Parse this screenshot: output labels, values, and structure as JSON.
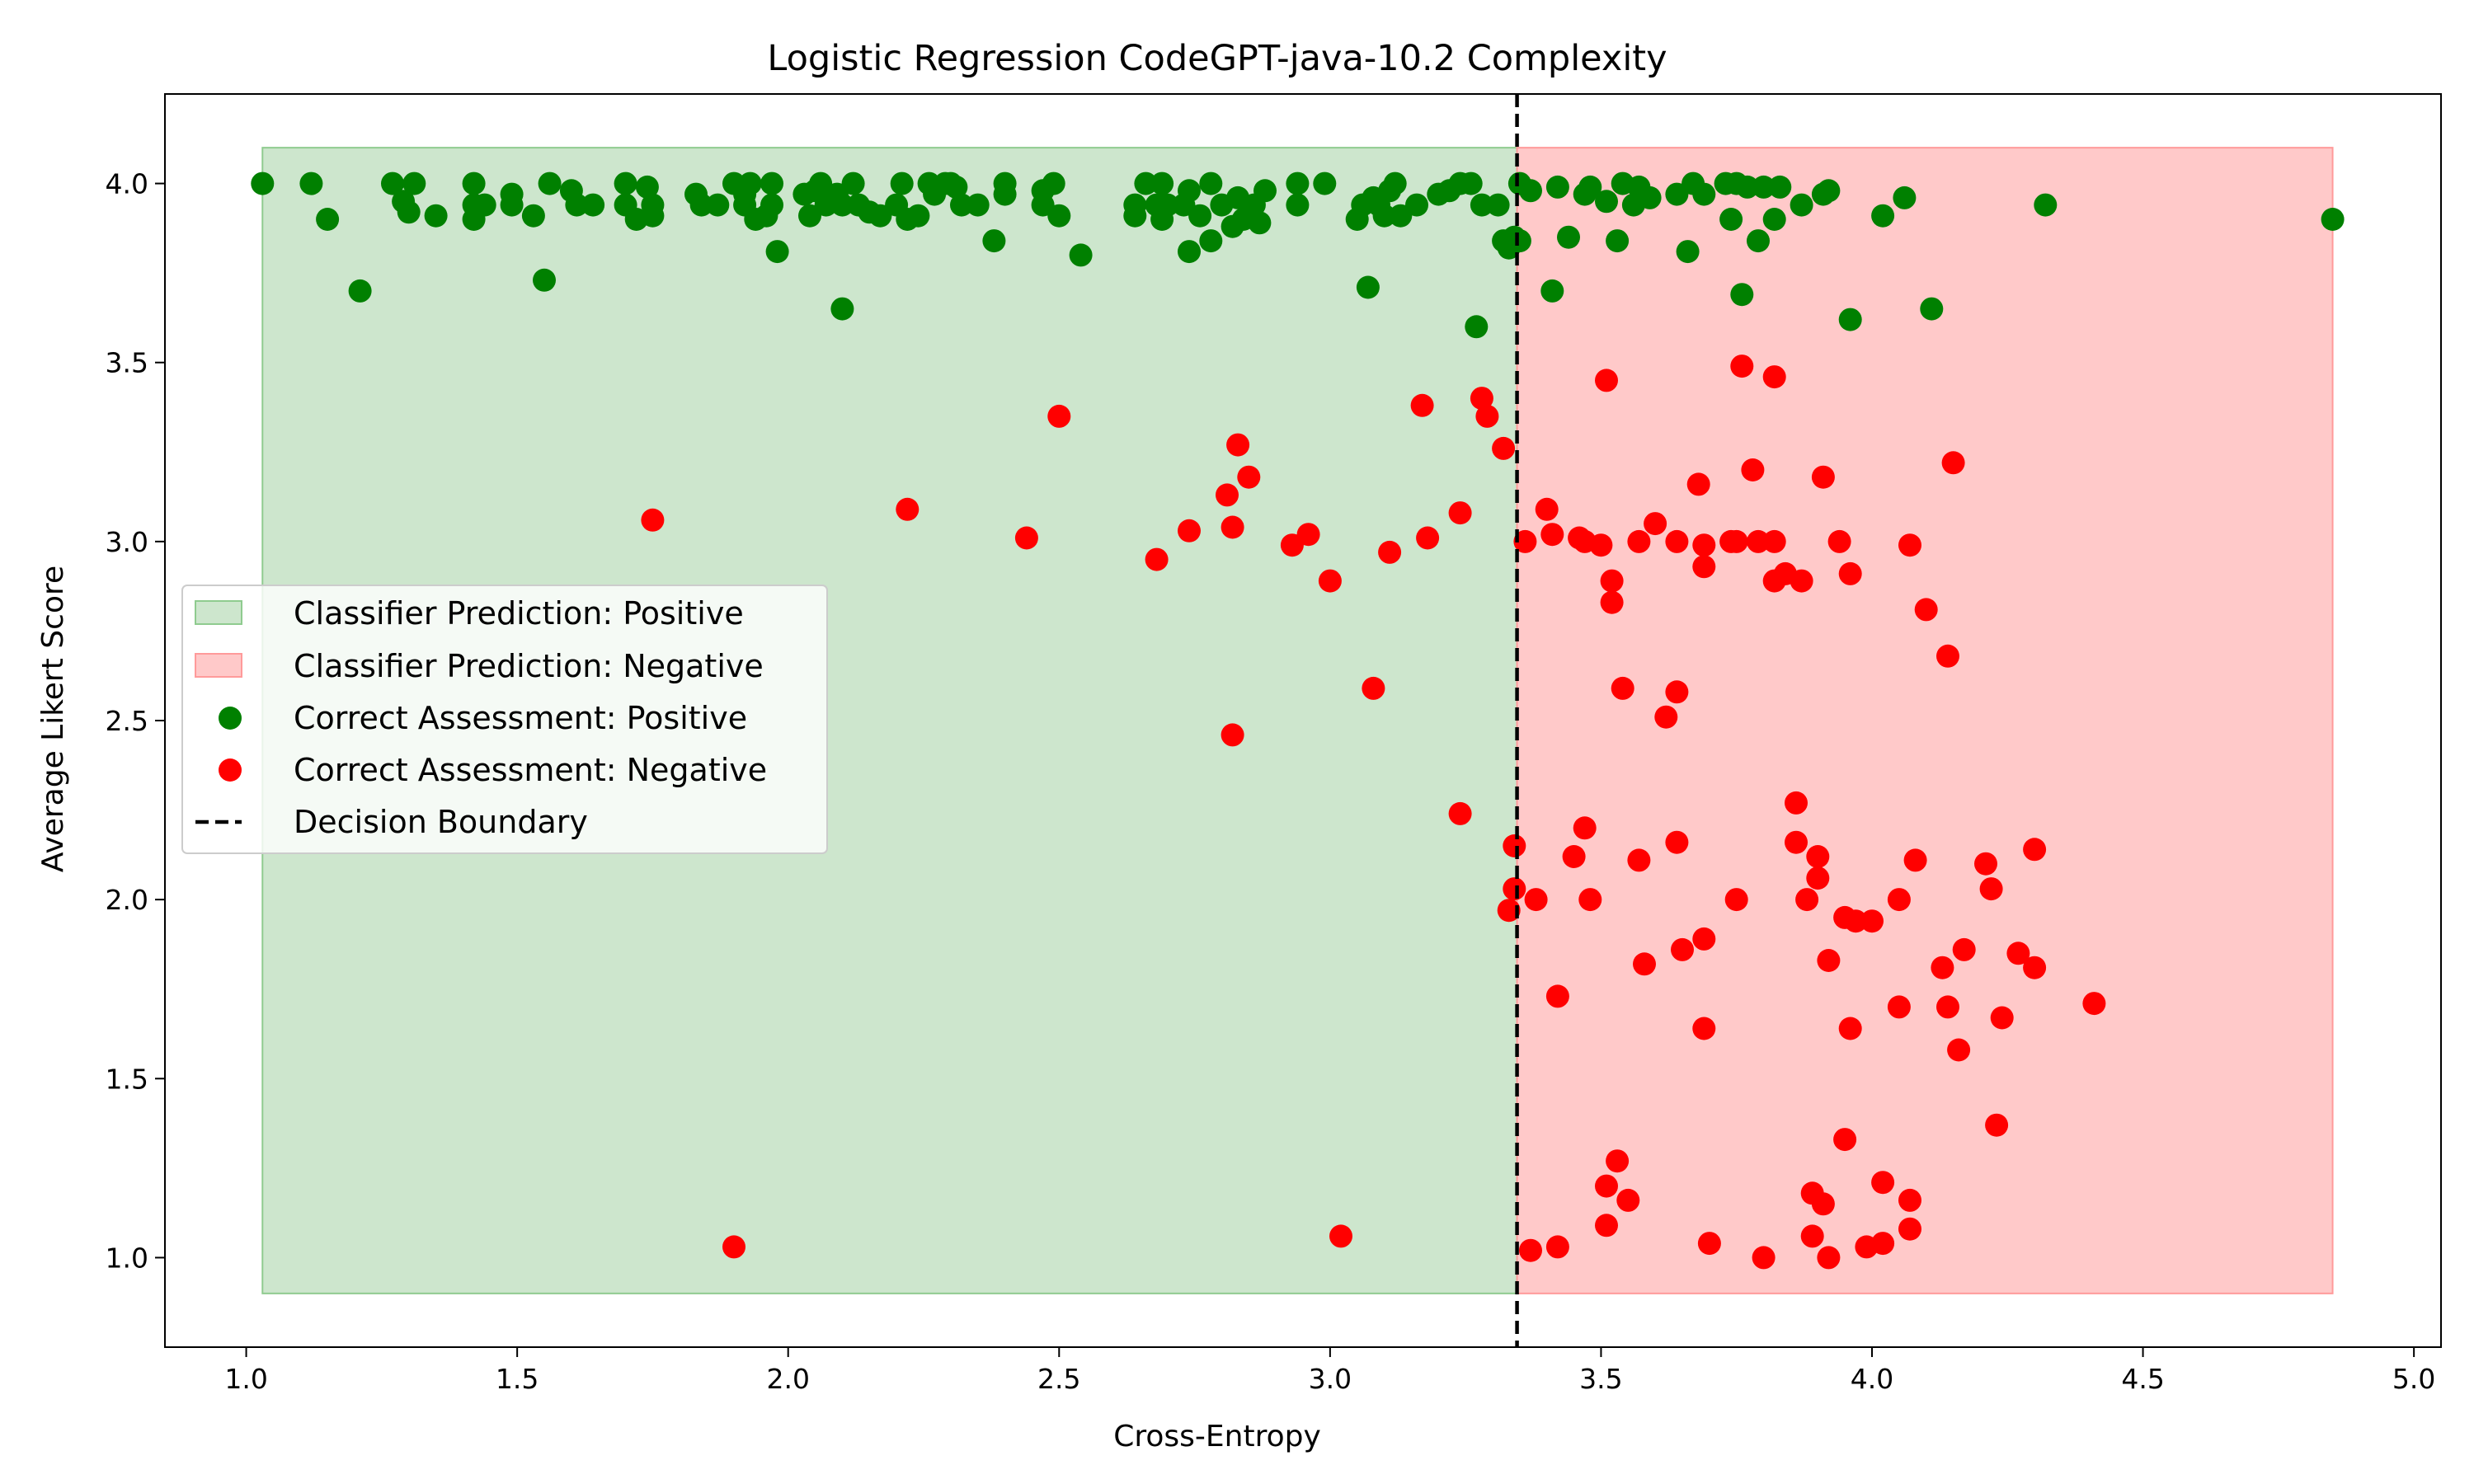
{
  "chart_data": {
    "type": "scatter",
    "title": "Logistic Regression CodeGPT-java-10.2 Complexity",
    "xlabel": "Cross-Entropy",
    "ylabel": "Average Likert Score",
    "xlim": [
      0.85,
      5.05
    ],
    "ylim": [
      0.75,
      4.25
    ],
    "xticks": [
      "1.0",
      "1.5",
      "2.0",
      "2.5",
      "3.0",
      "3.5",
      "4.0",
      "4.5",
      "5.0"
    ],
    "yticks": [
      "1.0",
      "1.5",
      "2.0",
      "2.5",
      "3.0",
      "3.5",
      "4.0"
    ],
    "decision_boundary": 3.345,
    "regions": [
      {
        "name": "Classifier Prediction: Positive",
        "x": [
          1.03,
          3.345
        ],
        "y": [
          0.9,
          4.1
        ],
        "color": "#cde6cd"
      },
      {
        "name": "Classifier Prediction: Negative",
        "x": [
          3.345,
          4.85
        ],
        "y": [
          0.9,
          4.1
        ],
        "color": "#ffc9c9"
      }
    ],
    "legend": {
      "placement": "center-left",
      "entries": [
        "Classifier Prediction: Positive",
        "Classifier Prediction: Negative",
        "Correct Assessment: Positive",
        "Correct Assessment: Negative",
        "Decision Boundary"
      ]
    },
    "series": [
      {
        "name": "Correct Assessment: Positive",
        "color": "#008000",
        "points": [
          [
            1.03,
            4.0
          ],
          [
            1.12,
            4.0
          ],
          [
            1.15,
            3.9
          ],
          [
            1.21,
            3.7
          ],
          [
            1.27,
            4.0
          ],
          [
            1.29,
            3.95
          ],
          [
            1.31,
            4.0
          ],
          [
            1.3,
            3.92
          ],
          [
            1.35,
            3.91
          ],
          [
            1.42,
            4.0
          ],
          [
            1.42,
            3.94
          ],
          [
            1.42,
            3.9
          ],
          [
            1.44,
            3.94
          ],
          [
            1.49,
            3.97
          ],
          [
            1.49,
            3.94
          ],
          [
            1.53,
            3.91
          ],
          [
            1.55,
            3.73
          ],
          [
            1.56,
            4.0
          ],
          [
            1.6,
            3.98
          ],
          [
            1.61,
            3.94
          ],
          [
            1.64,
            3.94
          ],
          [
            1.7,
            4.0
          ],
          [
            1.7,
            3.94
          ],
          [
            1.72,
            3.9
          ],
          [
            1.74,
            3.99
          ],
          [
            1.75,
            3.94
          ],
          [
            1.75,
            3.91
          ],
          [
            1.83,
            3.97
          ],
          [
            1.84,
            3.94
          ],
          [
            1.87,
            3.94
          ],
          [
            1.9,
            4.0
          ],
          [
            1.92,
            3.97
          ],
          [
            1.92,
            3.94
          ],
          [
            1.93,
            4.0
          ],
          [
            1.94,
            3.9
          ],
          [
            1.96,
            3.91
          ],
          [
            1.97,
            4.0
          ],
          [
            1.97,
            3.94
          ],
          [
            1.98,
            3.81
          ],
          [
            2.03,
            3.97
          ],
          [
            2.04,
            3.91
          ],
          [
            2.05,
            3.98
          ],
          [
            2.06,
            4.0
          ],
          [
            2.07,
            3.94
          ],
          [
            2.09,
            3.97
          ],
          [
            2.1,
            3.65
          ],
          [
            2.1,
            3.94
          ],
          [
            2.12,
            4.0
          ],
          [
            2.13,
            3.94
          ],
          [
            2.15,
            3.92
          ],
          [
            2.17,
            3.91
          ],
          [
            2.2,
            3.94
          ],
          [
            2.21,
            4.0
          ],
          [
            2.22,
            3.9
          ],
          [
            2.24,
            3.91
          ],
          [
            2.26,
            4.0
          ],
          [
            2.27,
            3.97
          ],
          [
            2.29,
            4.0
          ],
          [
            2.3,
            4.0
          ],
          [
            2.31,
            3.99
          ],
          [
            2.32,
            3.94
          ],
          [
            2.35,
            3.94
          ],
          [
            2.38,
            3.84
          ],
          [
            2.4,
            3.97
          ],
          [
            2.4,
            4.0
          ],
          [
            2.47,
            3.98
          ],
          [
            2.47,
            3.94
          ],
          [
            2.49,
            4.0
          ],
          [
            2.5,
            3.91
          ],
          [
            2.54,
            3.8
          ],
          [
            2.64,
            3.91
          ],
          [
            2.64,
            3.94
          ],
          [
            2.66,
            4.0
          ],
          [
            2.68,
            3.94
          ],
          [
            2.69,
            4.0
          ],
          [
            2.69,
            3.9
          ],
          [
            2.7,
            3.94
          ],
          [
            2.73,
            3.94
          ],
          [
            2.74,
            3.98
          ],
          [
            2.74,
            3.81
          ],
          [
            2.76,
            3.91
          ],
          [
            2.78,
            3.84
          ],
          [
            2.78,
            4.0
          ],
          [
            2.8,
            3.94
          ],
          [
            2.82,
            3.88
          ],
          [
            2.83,
            3.96
          ],
          [
            2.84,
            3.9
          ],
          [
            2.86,
            3.94
          ],
          [
            2.87,
            3.89
          ],
          [
            2.88,
            3.98
          ],
          [
            2.94,
            4.0
          ],
          [
            2.94,
            3.94
          ],
          [
            2.99,
            4.0
          ],
          [
            3.05,
            3.9
          ],
          [
            3.06,
            3.94
          ],
          [
            3.07,
            3.71
          ],
          [
            3.08,
            3.96
          ],
          [
            3.09,
            3.94
          ],
          [
            3.1,
            3.91
          ],
          [
            3.11,
            3.98
          ],
          [
            3.12,
            4.0
          ],
          [
            3.13,
            3.91
          ],
          [
            3.16,
            3.94
          ],
          [
            3.2,
            3.97
          ],
          [
            3.22,
            3.98
          ],
          [
            3.24,
            4.0
          ],
          [
            3.26,
            4.0
          ],
          [
            3.27,
            3.6
          ],
          [
            3.28,
            3.94
          ],
          [
            3.31,
            3.94
          ],
          [
            3.32,
            3.84
          ],
          [
            3.33,
            3.82
          ],
          [
            3.34,
            3.85
          ],
          [
            3.35,
            4.0
          ],
          [
            3.35,
            3.84
          ],
          [
            3.37,
            3.98
          ],
          [
            3.41,
            3.7
          ],
          [
            3.42,
            3.99
          ],
          [
            3.44,
            3.85
          ],
          [
            3.47,
            3.97
          ],
          [
            3.48,
            3.99
          ],
          [
            3.51,
            3.95
          ],
          [
            3.53,
            3.84
          ],
          [
            3.54,
            4.0
          ],
          [
            3.56,
            3.94
          ],
          [
            3.57,
            3.99
          ],
          [
            3.59,
            3.96
          ],
          [
            3.64,
            3.97
          ],
          [
            3.66,
            3.81
          ],
          [
            3.67,
            4.0
          ],
          [
            3.69,
            3.97
          ],
          [
            3.73,
            4.0
          ],
          [
            3.74,
            3.9
          ],
          [
            3.75,
            4.0
          ],
          [
            3.76,
            3.69
          ],
          [
            3.77,
            3.99
          ],
          [
            3.79,
            3.84
          ],
          [
            3.8,
            3.99
          ],
          [
            3.82,
            3.9
          ],
          [
            3.83,
            3.99
          ],
          [
            3.87,
            3.94
          ],
          [
            3.91,
            3.97
          ],
          [
            3.92,
            3.98
          ],
          [
            3.96,
            3.62
          ],
          [
            4.02,
            3.91
          ],
          [
            4.06,
            3.96
          ],
          [
            4.11,
            3.65
          ],
          [
            4.32,
            3.94
          ],
          [
            4.85,
            3.9
          ]
        ]
      },
      {
        "name": "Correct Assessment: Negative",
        "color": "#ff0000",
        "points": [
          [
            1.75,
            3.06
          ],
          [
            1.9,
            1.03
          ],
          [
            2.22,
            3.09
          ],
          [
            2.44,
            3.01
          ],
          [
            2.5,
            3.35
          ],
          [
            2.68,
            2.95
          ],
          [
            2.74,
            3.03
          ],
          [
            2.81,
            3.13
          ],
          [
            2.82,
            3.04
          ],
          [
            2.82,
            2.46
          ],
          [
            2.83,
            3.27
          ],
          [
            2.85,
            3.18
          ],
          [
            2.93,
            2.99
          ],
          [
            2.96,
            3.02
          ],
          [
            3.0,
            2.89
          ],
          [
            3.02,
            1.06
          ],
          [
            3.08,
            2.59
          ],
          [
            3.11,
            2.97
          ],
          [
            3.17,
            3.38
          ],
          [
            3.18,
            3.01
          ],
          [
            3.24,
            3.08
          ],
          [
            3.24,
            2.24
          ],
          [
            3.28,
            3.4
          ],
          [
            3.29,
            3.35
          ],
          [
            3.32,
            3.26
          ],
          [
            3.33,
            1.97
          ],
          [
            3.34,
            2.03
          ],
          [
            3.34,
            2.15
          ],
          [
            3.36,
            3.0
          ],
          [
            3.37,
            1.02
          ],
          [
            3.38,
            2.0
          ],
          [
            3.4,
            3.09
          ],
          [
            3.41,
            3.02
          ],
          [
            3.42,
            1.73
          ],
          [
            3.42,
            1.03
          ],
          [
            3.45,
            2.12
          ],
          [
            3.46,
            3.01
          ],
          [
            3.47,
            3.0
          ],
          [
            3.47,
            2.2
          ],
          [
            3.48,
            2.0
          ],
          [
            3.5,
            2.99
          ],
          [
            3.51,
            3.45
          ],
          [
            3.51,
            1.2
          ],
          [
            3.51,
            1.09
          ],
          [
            3.52,
            2.89
          ],
          [
            3.52,
            2.83
          ],
          [
            3.53,
            1.27
          ],
          [
            3.54,
            2.59
          ],
          [
            3.55,
            1.16
          ],
          [
            3.57,
            3.0
          ],
          [
            3.57,
            2.11
          ],
          [
            3.58,
            1.82
          ],
          [
            3.6,
            3.05
          ],
          [
            3.62,
            2.51
          ],
          [
            3.64,
            3.0
          ],
          [
            3.64,
            2.58
          ],
          [
            3.64,
            2.16
          ],
          [
            3.65,
            1.86
          ],
          [
            3.68,
            3.16
          ],
          [
            3.69,
            2.99
          ],
          [
            3.69,
            2.93
          ],
          [
            3.69,
            1.89
          ],
          [
            3.69,
            1.64
          ],
          [
            3.7,
            1.04
          ],
          [
            3.74,
            3.0
          ],
          [
            3.75,
            3.0
          ],
          [
            3.75,
            2.0
          ],
          [
            3.76,
            3.49
          ],
          [
            3.78,
            3.2
          ],
          [
            3.79,
            3.0
          ],
          [
            3.8,
            1.0
          ],
          [
            3.82,
            3.46
          ],
          [
            3.82,
            3.0
          ],
          [
            3.82,
            2.89
          ],
          [
            3.84,
            2.91
          ],
          [
            3.86,
            2.27
          ],
          [
            3.86,
            2.16
          ],
          [
            3.87,
            2.89
          ],
          [
            3.88,
            2.0
          ],
          [
            3.89,
            1.18
          ],
          [
            3.89,
            1.06
          ],
          [
            3.9,
            2.12
          ],
          [
            3.9,
            2.06
          ],
          [
            3.91,
            3.18
          ],
          [
            3.91,
            1.15
          ],
          [
            3.92,
            1.83
          ],
          [
            3.92,
            1.0
          ],
          [
            3.94,
            3.0
          ],
          [
            3.95,
            1.95
          ],
          [
            3.95,
            1.33
          ],
          [
            3.96,
            2.91
          ],
          [
            3.96,
            1.64
          ],
          [
            3.97,
            1.94
          ],
          [
            3.99,
            1.03
          ],
          [
            4.0,
            1.94
          ],
          [
            4.02,
            1.21
          ],
          [
            4.02,
            1.04
          ],
          [
            4.05,
            2.0
          ],
          [
            4.05,
            1.7
          ],
          [
            4.07,
            2.99
          ],
          [
            4.07,
            1.16
          ],
          [
            4.07,
            1.08
          ],
          [
            4.08,
            2.11
          ],
          [
            4.1,
            2.81
          ],
          [
            4.13,
            1.81
          ],
          [
            4.14,
            2.68
          ],
          [
            4.14,
            1.7
          ],
          [
            4.15,
            3.22
          ],
          [
            4.16,
            1.58
          ],
          [
            4.17,
            1.86
          ],
          [
            4.21,
            2.1
          ],
          [
            4.22,
            2.03
          ],
          [
            4.23,
            1.37
          ],
          [
            4.24,
            1.67
          ],
          [
            4.27,
            1.85
          ],
          [
            4.3,
            2.14
          ],
          [
            4.3,
            1.81
          ],
          [
            4.41,
            1.71
          ]
        ]
      }
    ]
  }
}
